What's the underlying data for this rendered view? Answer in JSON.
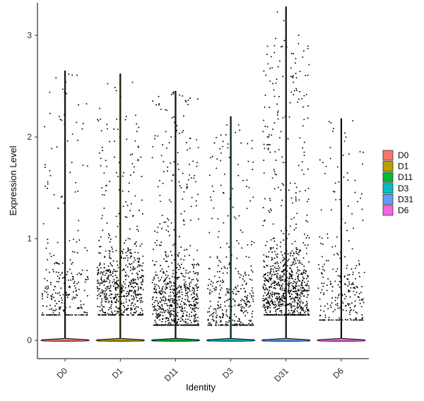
{
  "chart_data": {
    "type": "violin-jitter",
    "title": "",
    "xlabel": "Identity",
    "ylabel": "Expression Level",
    "ylim": [
      -0.18,
      3.32
    ],
    "yticks": [
      0,
      1,
      2,
      3
    ],
    "grid": false,
    "legend_position": "right",
    "categories": [
      "D0",
      "D1",
      "D11",
      "D3",
      "D31",
      "D6"
    ],
    "series": [
      {
        "name": "D0",
        "color": "#F8766D",
        "max": 2.65,
        "zero_fraction": 0.5,
        "point_count": 260,
        "range": [
          0.25,
          2.45
        ],
        "mode": 0.45
      },
      {
        "name": "D1",
        "color": "#B79F00",
        "max": 2.62,
        "zero_fraction": 0.5,
        "point_count": 620,
        "range": [
          0.25,
          2.3
        ],
        "mode": 0.5
      },
      {
        "name": "D11",
        "color": "#00BA38",
        "max": 2.45,
        "zero_fraction": 0.5,
        "point_count": 720,
        "range": [
          0.15,
          2.4
        ],
        "mode": 0.35
      },
      {
        "name": "D3",
        "color": "#00BFC4",
        "max": 2.2,
        "zero_fraction": 0.5,
        "point_count": 380,
        "range": [
          0.15,
          2.0
        ],
        "mode": 0.3
      },
      {
        "name": "D31",
        "color": "#619CFF",
        "max": 3.28,
        "zero_fraction": 0.5,
        "point_count": 900,
        "range": [
          0.25,
          2.9
        ],
        "mode": 0.5
      },
      {
        "name": "D6",
        "color": "#F564E3",
        "max": 2.18,
        "zero_fraction": 0.5,
        "point_count": 260,
        "range": [
          0.2,
          2.0
        ],
        "mode": 0.4
      }
    ]
  }
}
